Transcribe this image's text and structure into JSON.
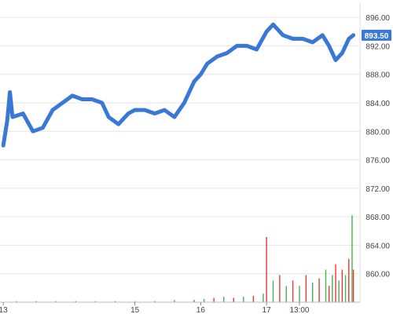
{
  "chart_data": {
    "type": "line",
    "title": "",
    "xlabel": "",
    "ylabel": "",
    "ylim": [
      856,
      898
    ],
    "grid": "horizontal",
    "y_axis_position": "right",
    "y_ticks": [
      "860.00",
      "864.00",
      "868.00",
      "872.00",
      "876.00",
      "880.00",
      "884.00",
      "888.00",
      "892.00",
      "896.00"
    ],
    "x_ticks": [
      {
        "label": "13",
        "t": 0.0
      },
      {
        "label": "15",
        "t": 2.0
      },
      {
        "label": "16",
        "t": 3.0
      },
      {
        "label": "17",
        "t": 4.0
      },
      {
        "label": "13:00",
        "t": 4.5
      }
    ],
    "last_price": {
      "label": "893.50",
      "value": 893.5
    },
    "series": [
      {
        "values_t": [
          0.0,
          0.06,
          0.1,
          0.14,
          0.3,
          0.45,
          0.6,
          0.75,
          0.9,
          1.05,
          1.2,
          1.35,
          1.5,
          1.6,
          1.75,
          1.9,
          2.0,
          2.15,
          2.3,
          2.45,
          2.6,
          2.75,
          2.9,
          3.0,
          3.1,
          3.25,
          3.4,
          3.55,
          3.7,
          3.85,
          4.0,
          4.1,
          4.25,
          4.4,
          4.55,
          4.7,
          4.85,
          4.95,
          5.05,
          5.15,
          5.25,
          5.32
        ],
        "values": [
          878.0,
          881.5,
          885.5,
          882.0,
          882.5,
          880.0,
          880.5,
          883.0,
          884.0,
          885.0,
          884.5,
          884.5,
          884.0,
          882.0,
          881.0,
          882.5,
          883.0,
          883.0,
          882.5,
          883.0,
          882.0,
          884.0,
          887.0,
          888.0,
          889.5,
          890.5,
          891.0,
          892.0,
          892.0,
          891.5,
          894.0,
          895.0,
          893.5,
          893.0,
          893.0,
          892.5,
          893.5,
          892.0,
          890.0,
          891.0,
          893.0,
          893.5
        ]
      }
    ],
    "volume": {
      "t": [
        0.2,
        0.5,
        0.8,
        1.1,
        1.4,
        1.7,
        2.0,
        2.3,
        2.6,
        2.9,
        3.05,
        3.2,
        3.35,
        3.5,
        3.65,
        3.8,
        3.95,
        4.0,
        4.1,
        4.2,
        4.3,
        4.4,
        4.5,
        4.6,
        4.7,
        4.8,
        4.9,
        4.95,
        5.0,
        5.05,
        5.1,
        5.15,
        5.2,
        5.25,
        5.3,
        5.32
      ],
      "values": [
        0.1,
        0.1,
        0.1,
        0.1,
        0.1,
        0.1,
        0.1,
        0.1,
        0.2,
        0.2,
        0.3,
        0.4,
        0.5,
        0.4,
        0.5,
        0.6,
        0.8,
        6.0,
        2.0,
        2.5,
        1.5,
        2.0,
        1.5,
        2.5,
        1.8,
        2.2,
        3.0,
        1.5,
        2.5,
        3.5,
        2.0,
        3.0,
        2.5,
        4.0,
        8.0,
        3.0
      ],
      "up_color": "#4caf50",
      "down_color": "#e53935"
    },
    "line_color": "#3a78d8",
    "badge_color": "#3a78d8"
  }
}
